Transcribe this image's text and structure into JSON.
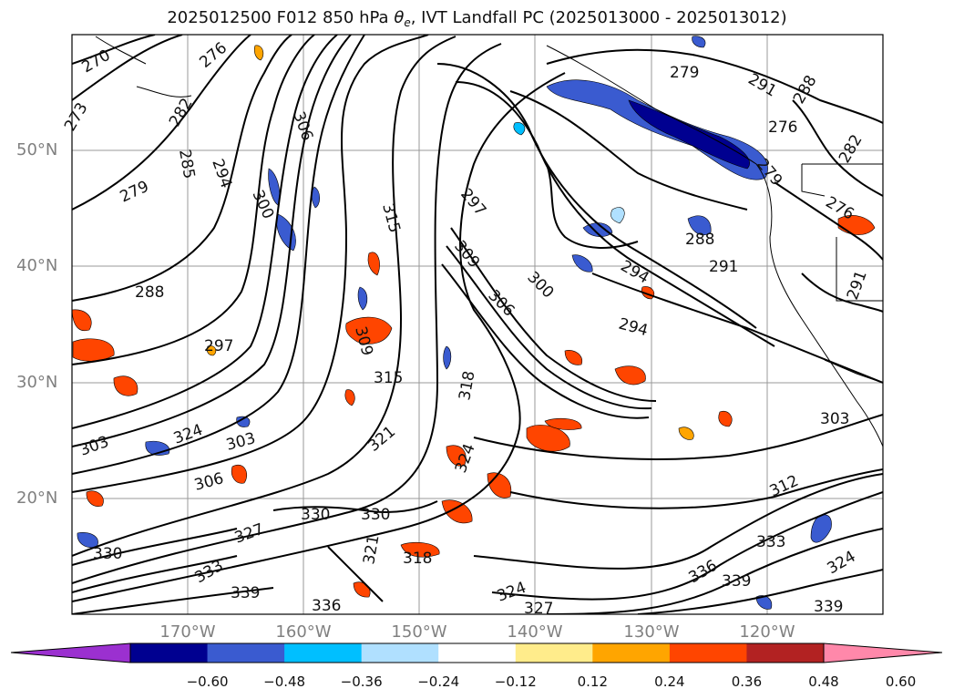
{
  "title": {
    "prefix": "2025012500 F012 850 hPa ",
    "theta_symbol": "θ",
    "theta_sub": "e",
    "suffix": ", IVT Landfall PC (2025013000 - 2025013012)"
  },
  "map": {
    "projection_extent": {
      "lon_min": -180,
      "lon_max": -110,
      "lat_min": 10,
      "lat_max": 60
    },
    "grid": true,
    "lat_labels": [
      "50°N",
      "40°N",
      "30°N",
      "20°N"
    ],
    "lon_labels": [
      "170°W",
      "160°W",
      "150°W",
      "140°W",
      "130°W",
      "120°W"
    ],
    "contour_variable": "850 hPa theta-e",
    "contour_labels": [
      "270",
      "273",
      "276",
      "282",
      "285",
      "279",
      "288",
      "294",
      "300",
      "306",
      "297",
      "315",
      "309",
      "303",
      "312",
      "318",
      "321",
      "324",
      "327",
      "330",
      "333",
      "336",
      "339",
      "291"
    ],
    "shading_variable": "IVT Landfall PC"
  },
  "colorbar": {
    "tick_labels": [
      "−0.60",
      "−0.48",
      "−0.36",
      "−0.24",
      "−0.12",
      "0.12",
      "0.24",
      "0.36",
      "0.48",
      "0.60"
    ],
    "colors": [
      "#9b30d0",
      "#000090",
      "#3a5bd0",
      "#00bfff",
      "#b0e0ff",
      "#ffffff",
      "#ffec8b",
      "#ffa500",
      "#ff4500",
      "#b22222",
      "#ff88aa"
    ],
    "extend": "both"
  }
}
